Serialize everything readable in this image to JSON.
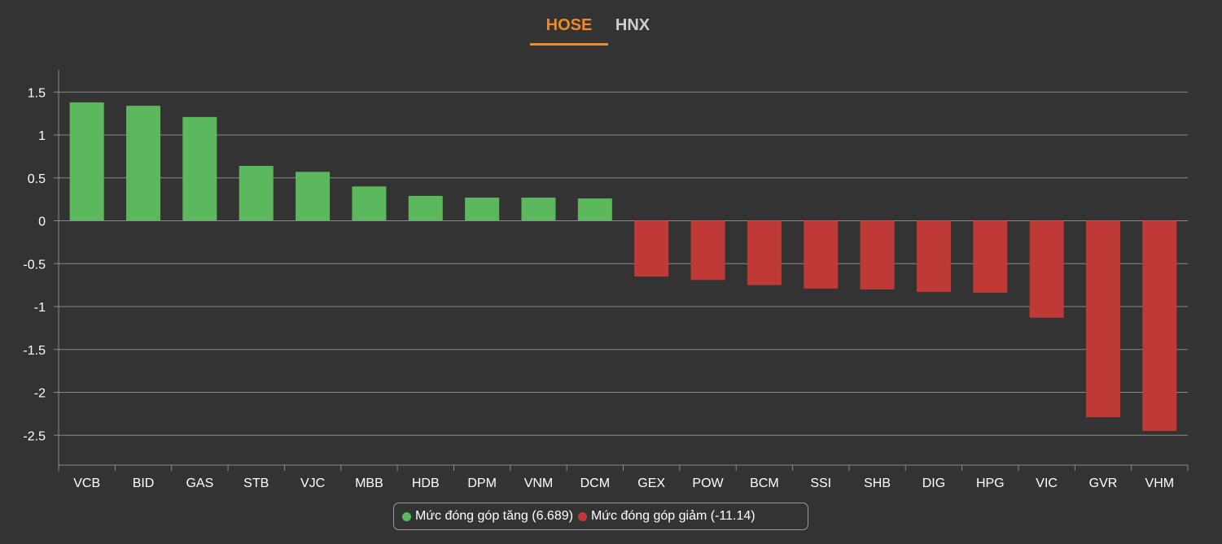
{
  "tabs": [
    {
      "label": "HOSE",
      "active": true
    },
    {
      "label": "HNX",
      "active": false
    }
  ],
  "colors": {
    "positive": "#5cb85c",
    "negative": "#bf3a36",
    "active_tab": "#f08a24",
    "background": "#333333"
  },
  "legend": {
    "positive_label": "Mức đóng góp tăng (6.689)",
    "negative_label": "Mức đóng góp giảm (-11.14)"
  },
  "chart_data": {
    "type": "bar",
    "categories": [
      "VCB",
      "BID",
      "GAS",
      "STB",
      "VJC",
      "MBB",
      "HDB",
      "DPM",
      "VNM",
      "DCM",
      "GEX",
      "POW",
      "BCM",
      "SSI",
      "SHB",
      "DIG",
      "HPG",
      "VIC",
      "GVR",
      "VHM"
    ],
    "values": [
      1.38,
      1.34,
      1.21,
      0.64,
      0.57,
      0.4,
      0.29,
      0.27,
      0.27,
      0.26,
      -0.65,
      -0.69,
      -0.75,
      -0.79,
      -0.8,
      -0.83,
      -0.84,
      -1.13,
      -2.29,
      -2.45
    ],
    "ylim": [
      -2.85,
      1.75
    ],
    "yticks": [
      1.5,
      1,
      0.5,
      0,
      -0.5,
      -1,
      -1.5,
      -2,
      -2.5
    ],
    "ytick_labels": [
      "1.5",
      "1",
      "0.5",
      "0",
      "-0.5",
      "-1",
      "-1.5",
      "-2",
      "-2.5"
    ],
    "grid": true,
    "legend_position": "bottom-center"
  }
}
